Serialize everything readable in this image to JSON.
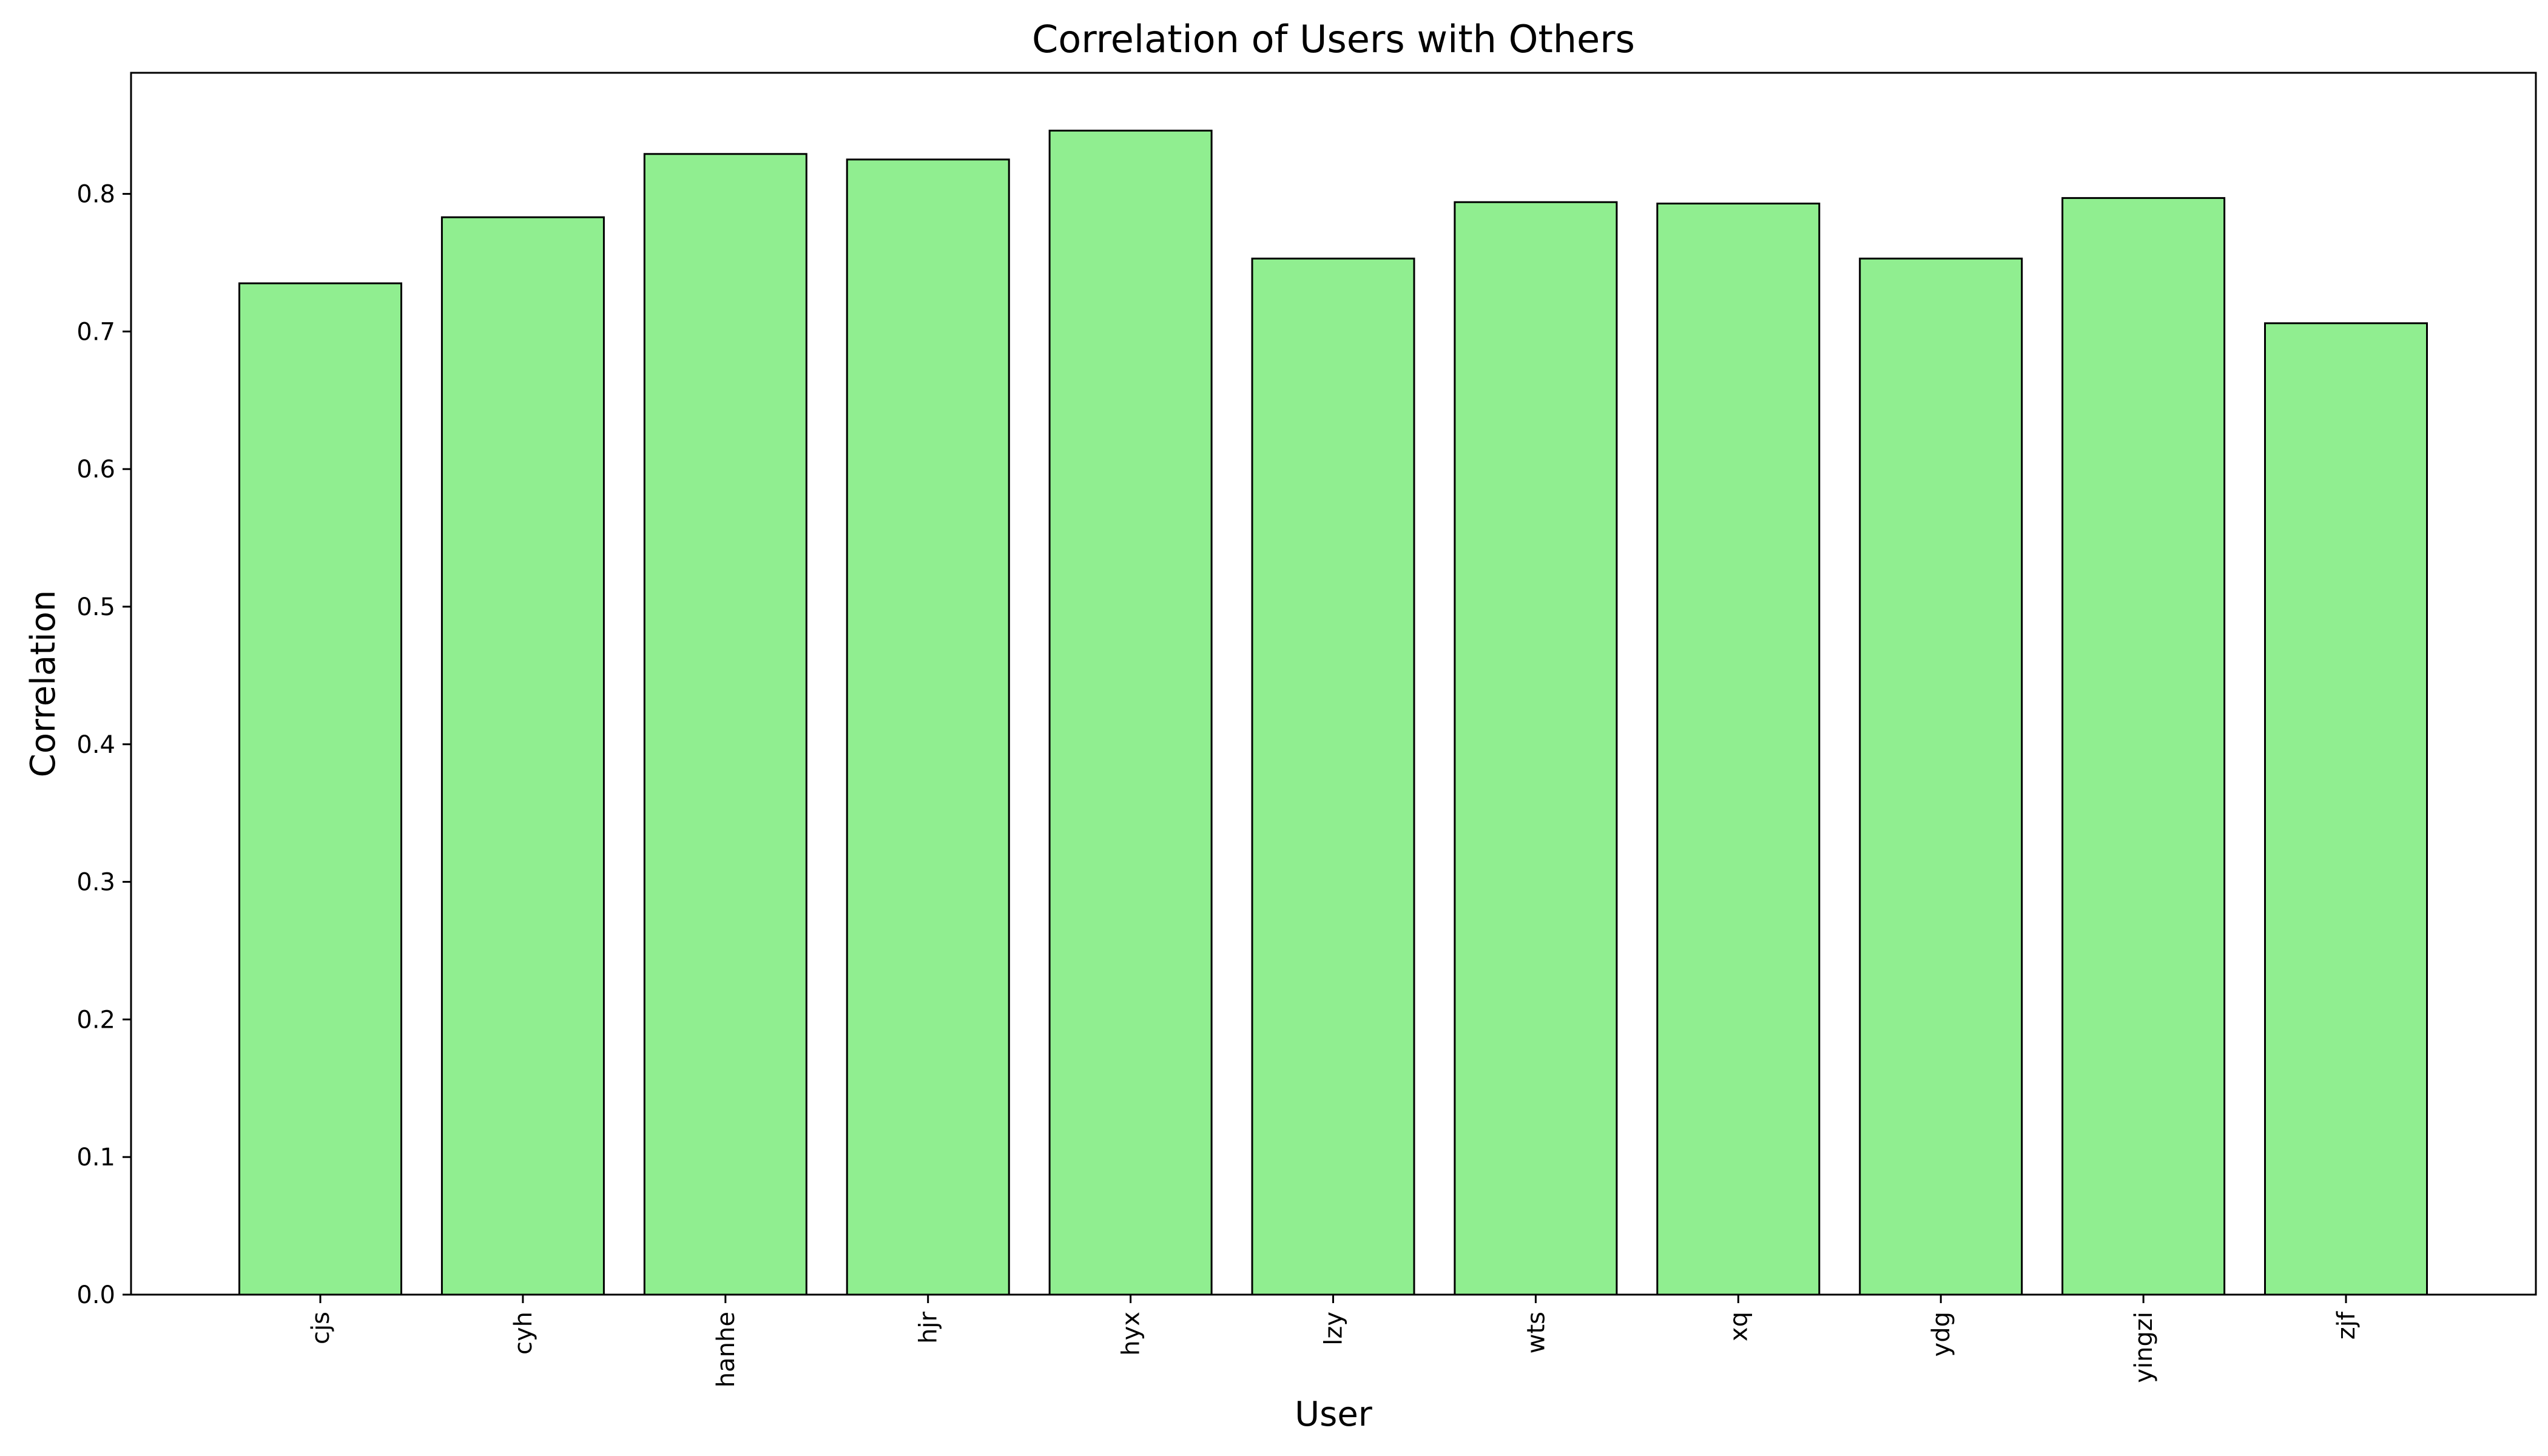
{
  "chart_data": {
    "type": "bar",
    "title": "Correlation of Users with Others",
    "xlabel": "User",
    "ylabel": "Correlation",
    "categories": [
      "cjs",
      "cyh",
      "hanhe",
      "hjr",
      "hyx",
      "lzy",
      "wts",
      "xq",
      "ydg",
      "yingzi",
      "zjf"
    ],
    "values": [
      0.735,
      0.783,
      0.829,
      0.825,
      0.846,
      0.753,
      0.794,
      0.793,
      0.753,
      0.797,
      0.706
    ],
    "ylim": [
      0,
      0.888
    ],
    "yticks": [
      0.0,
      0.1,
      0.2,
      0.3,
      0.4,
      0.5,
      0.6,
      0.7,
      0.8
    ],
    "ytick_labels": [
      "0.0",
      "0.1",
      "0.2",
      "0.3",
      "0.4",
      "0.5",
      "0.6",
      "0.7",
      "0.8"
    ],
    "xtick_rotation": "vertical",
    "grid": false,
    "legend": "none",
    "bar_color": "#90ee90",
    "edge_color": "#000000"
  }
}
